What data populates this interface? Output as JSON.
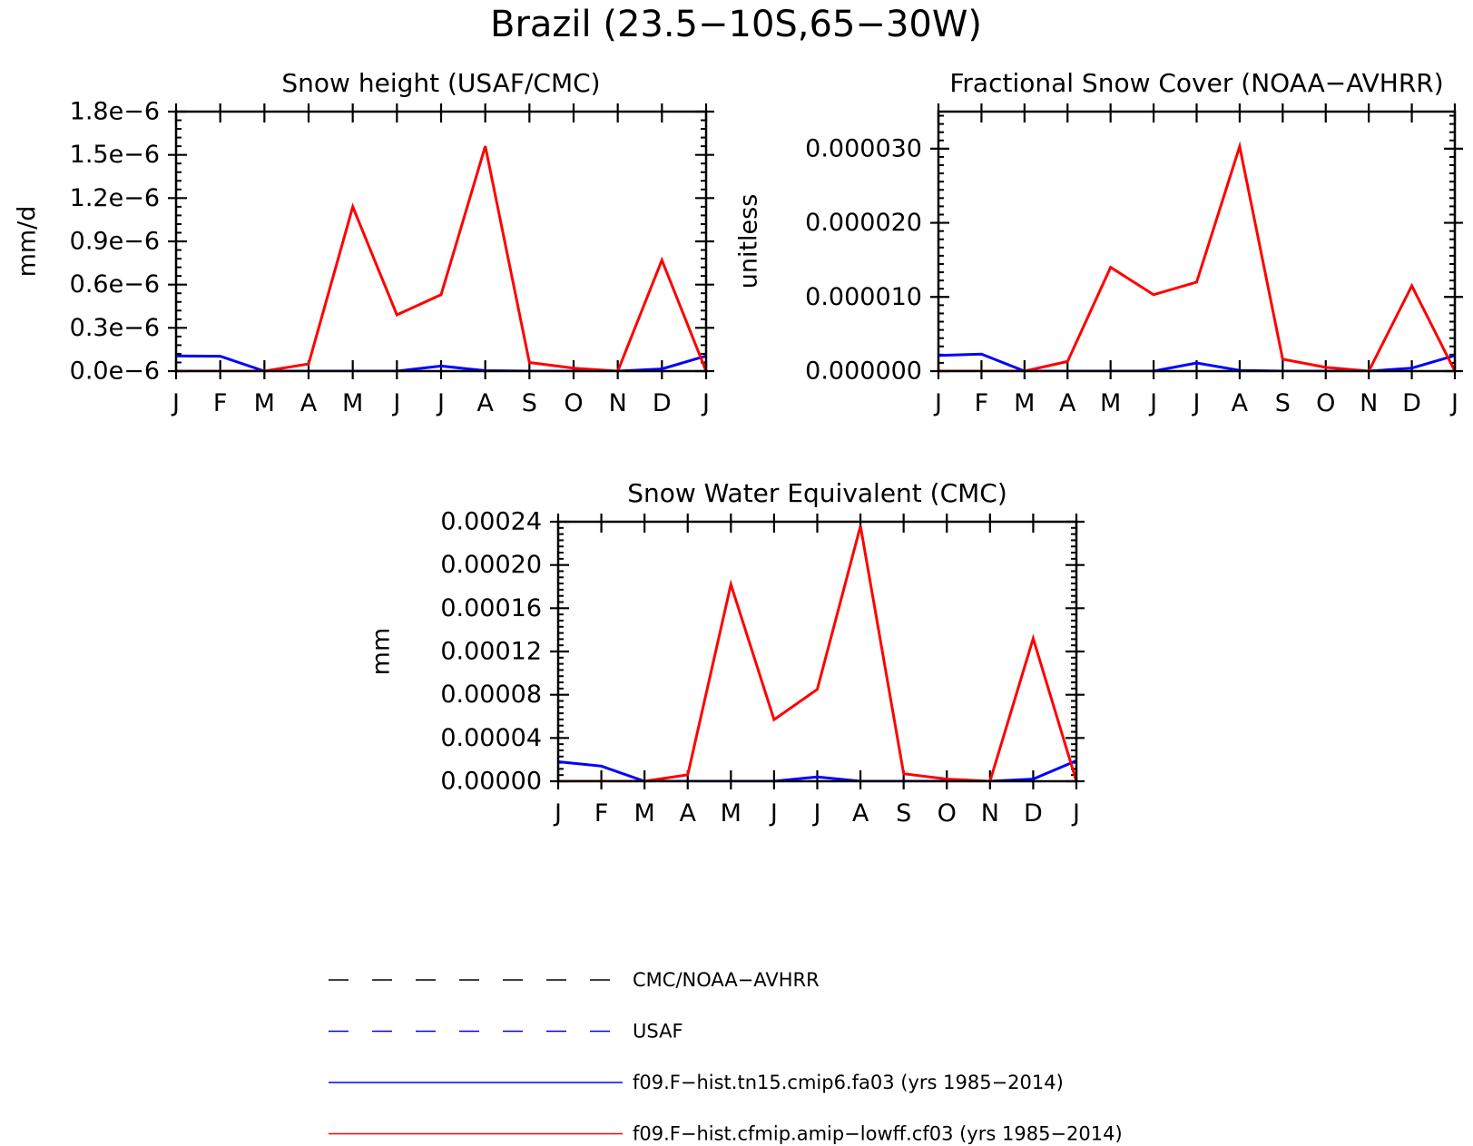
{
  "figure": {
    "title": "Brazil (23.5−10S,65−30W)"
  },
  "colors": {
    "obs": "#000000",
    "usaf": "#0000ff",
    "model_a": "#0000ff",
    "model_b": "#ff0000"
  },
  "chart_data": [
    {
      "type": "line",
      "title": "Snow height (USAF/CMC)",
      "xlabel": "",
      "ylabel": "mm/d",
      "categories": [
        "J",
        "F",
        "M",
        "A",
        "M",
        "J",
        "J",
        "A",
        "S",
        "O",
        "N",
        "D",
        "J"
      ],
      "ylim": [
        0,
        1.8e-06
      ],
      "yticks": [
        0,
        3e-07,
        6e-07,
        9e-07,
        1.2e-06,
        1.5e-06,
        1.8e-06
      ],
      "ytick_labels": [
        "0.0e−6",
        "0.3e−6",
        "0.6e−6",
        "0.9e−6",
        "1.2e−6",
        "1.5e−6",
        "1.8e−6"
      ],
      "grid": false,
      "series": [
        {
          "name": "f09.F−hist.tn15.cmip6.fa03 (yrs 1985−2014)",
          "color": "#0000ff",
          "dash": false,
          "values": [
            1.05e-07,
            1.03e-07,
            0,
            0,
            0,
            0,
            3.5e-08,
            3e-09,
            0,
            0,
            0,
            1.5e-08,
            1.05e-07
          ]
        },
        {
          "name": "f09.F−hist.cfmip.amip−lowff.cf03 (yrs 1985−2014)",
          "color": "#ff0000",
          "dash": false,
          "values": [
            0,
            0,
            0,
            5e-08,
            1.14e-06,
            3.9e-07,
            5.3e-07,
            1.56e-06,
            6e-08,
            2e-08,
            0,
            7.7e-07,
            0
          ]
        }
      ]
    },
    {
      "type": "line",
      "title": "Fractional Snow Cover (NOAA−AVHRR)",
      "xlabel": "",
      "ylabel": "unitless",
      "categories": [
        "J",
        "F",
        "M",
        "A",
        "M",
        "J",
        "J",
        "A",
        "S",
        "O",
        "N",
        "D",
        "J"
      ],
      "ylim": [
        0,
        3.5e-05
      ],
      "yticks": [
        0,
        1e-05,
        2e-05,
        3e-05
      ],
      "ytick_labels": [
        "0.000000",
        "0.000010",
        "0.000020",
        "0.000030"
      ],
      "grid": false,
      "series": [
        {
          "name": "f09.F−hist.tn15.cmip6.fa03 (yrs 1985−2014)",
          "color": "#0000ff",
          "dash": false,
          "values": [
            2.1e-06,
            2.3e-06,
            0,
            0,
            0,
            0,
            1.1e-06,
            1e-07,
            0,
            0,
            0,
            4e-07,
            2.1e-06
          ]
        },
        {
          "name": "f09.F−hist.cfmip.amip−lowff.cf03 (yrs 1985−2014)",
          "color": "#ff0000",
          "dash": false,
          "values": [
            0,
            0,
            0,
            1.3e-06,
            1.4e-05,
            1.03e-05,
            1.2e-05,
            3.03e-05,
            1.6e-06,
            5e-07,
            0,
            1.15e-05,
            0
          ]
        }
      ]
    },
    {
      "type": "line",
      "title": "Snow Water Equivalent (CMC)",
      "xlabel": "",
      "ylabel": "mm",
      "categories": [
        "J",
        "F",
        "M",
        "A",
        "M",
        "J",
        "J",
        "A",
        "S",
        "O",
        "N",
        "D",
        "J"
      ],
      "ylim": [
        0,
        0.00024
      ],
      "yticks": [
        0,
        4e-05,
        8e-05,
        0.00012,
        0.00016,
        0.0002,
        0.00024
      ],
      "ytick_labels": [
        "0.00000",
        "0.00004",
        "0.00008",
        "0.00012",
        "0.00016",
        "0.00020",
        "0.00024"
      ],
      "grid": false,
      "series": [
        {
          "name": "f09.F−hist.tn15.cmip6.fa03 (yrs 1985−2014)",
          "color": "#0000ff",
          "dash": false,
          "values": [
            1.8e-05,
            1.4e-05,
            0,
            0,
            0,
            0,
            4e-06,
            0,
            0,
            0,
            0,
            2e-06,
            1.9e-05
          ]
        },
        {
          "name": "f09.F−hist.cfmip.amip−lowff.cf03 (yrs 1985−2014)",
          "color": "#ff0000",
          "dash": false,
          "values": [
            0,
            0,
            0,
            6e-06,
            0.000182,
            5.7e-05,
            8.5e-05,
            0.000236,
            7e-06,
            2e-06,
            0,
            0.000132,
            0
          ]
        }
      ]
    }
  ],
  "legend": {
    "entries": [
      {
        "label": "CMC/NOAA−AVHRR",
        "color": "#000000",
        "dash": true
      },
      {
        "label": "USAF",
        "color": "#0000ff",
        "dash": true
      },
      {
        "label": "f09.F−hist.tn15.cmip6.fa03 (yrs 1985−2014)",
        "color": "#0000ff",
        "dash": false
      },
      {
        "label": "f09.F−hist.cfmip.amip−lowff.cf03 (yrs 1985−2014)",
        "color": "#ff0000",
        "dash": false
      }
    ]
  }
}
